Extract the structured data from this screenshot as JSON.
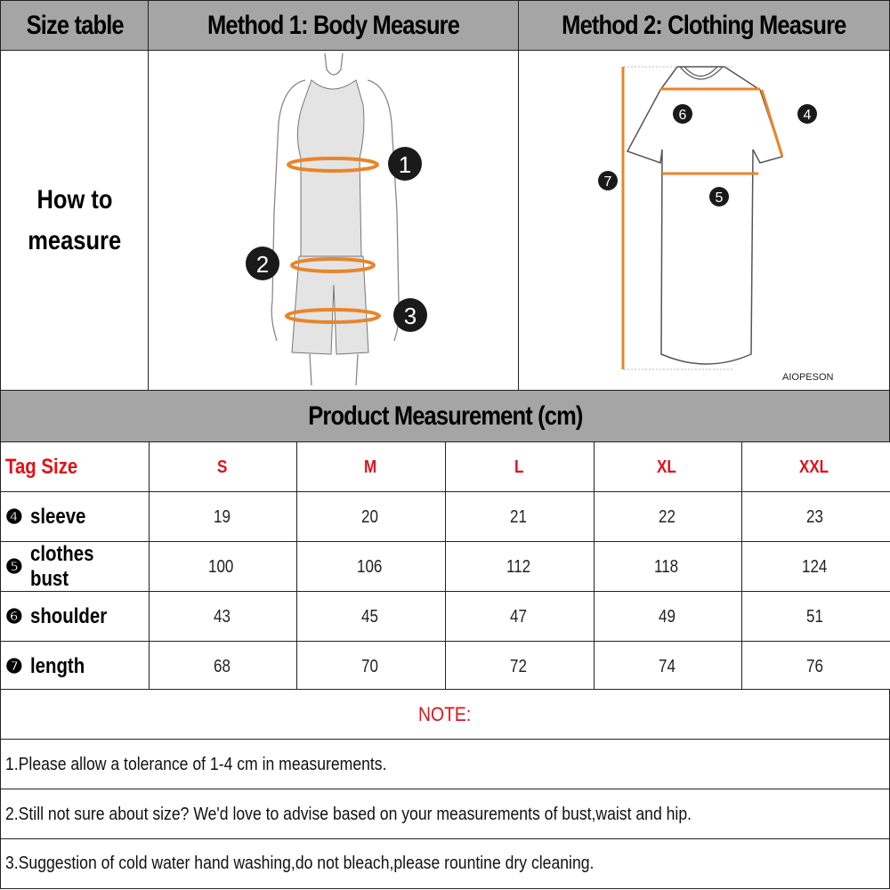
{
  "header": {
    "size_table": "Size table",
    "method1": "Method 1: Body  Measure",
    "method2": "Method 2: Clothing Measure"
  },
  "how_to": {
    "line1": "How to",
    "line2": "measure"
  },
  "body_markers": [
    "1",
    "2",
    "3"
  ],
  "clothing_markers": {
    "shoulder": "6",
    "sleeve": "4",
    "length": "7",
    "bust": "5"
  },
  "brand": "AIOPESON",
  "product_title": "Product Measurement (cm)",
  "colors": {
    "header_bg": "#a5a5a5",
    "accent_red": "#e0101a",
    "measure_orange": "#e8852a"
  },
  "table": {
    "tag_size_label": "Tag Size",
    "sizes": [
      "S",
      "M",
      "L",
      "XL",
      "XXL"
    ],
    "rows": [
      {
        "marker": "❹",
        "label": "sleeve",
        "values": [
          "19",
          "20",
          "21",
          "22",
          "23"
        ]
      },
      {
        "marker": "❺",
        "label": "clothes bust",
        "values": [
          "100",
          "106",
          "112",
          "118",
          "124"
        ]
      },
      {
        "marker": "❻",
        "label": "shoulder",
        "values": [
          "43",
          "45",
          "47",
          "49",
          "51"
        ]
      },
      {
        "marker": "❼",
        "label": "length",
        "values": [
          "68",
          "70",
          "72",
          "74",
          "76"
        ]
      }
    ]
  },
  "notes": {
    "title": "NOTE:",
    "items": [
      "1.Please allow a tolerance of 1-4 cm in measurements.",
      "2.Still not sure about size? We'd love to advise based on your measurements of bust,waist and hip.",
      "3.Suggestion of cold water hand washing,do not bleach,please rountine dry cleaning."
    ]
  }
}
